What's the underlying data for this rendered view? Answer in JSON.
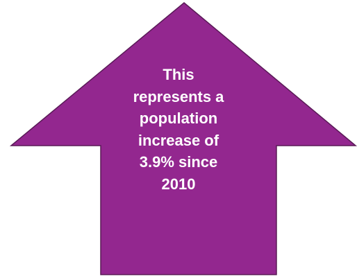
{
  "arrow": {
    "fill_color": "#93278F",
    "border_color": "#5A1A57",
    "text_color": "#FFFFFF",
    "lines": [
      "This",
      "represents a",
      "population",
      "increase of",
      "3.9% since",
      "2010"
    ]
  }
}
